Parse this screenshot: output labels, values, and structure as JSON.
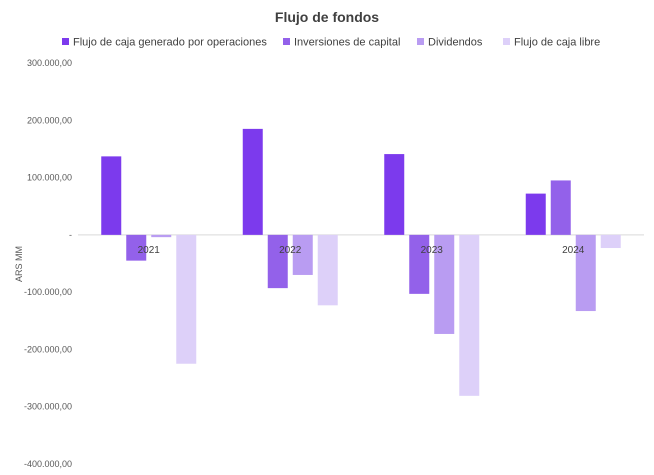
{
  "chart_data": {
    "type": "bar",
    "title": "Flujo de fondos",
    "ylabel": "ARS MM",
    "xlabel": "",
    "categories": [
      "2021",
      "2022",
      "2023",
      "2024"
    ],
    "ylim": [
      -400000,
      300000
    ],
    "yticks": [
      300000,
      200000,
      100000,
      0,
      -100000,
      -200000,
      -300000,
      -400000
    ],
    "ytick_labels": [
      "300.000,00",
      "200.000,00",
      "100.000,00",
      "-",
      "-100.000,00",
      "-200.000,00",
      "-300.000,00",
      "-400.000,00"
    ],
    "grid": false,
    "legend_position": "top",
    "series": [
      {
        "name": "Flujo de caja generado por operaciones",
        "color": "#7c3aed",
        "values": [
          137000,
          185000,
          141000,
          72000
        ]
      },
      {
        "name": "Inversiones de capital",
        "color": "#9361ea",
        "values": [
          -45000,
          -93000,
          -103000,
          95000
        ]
      },
      {
        "name": "Dividendos",
        "color": "#b99cf2",
        "values": [
          -4000,
          -70000,
          -173000,
          -133000
        ]
      },
      {
        "name": "Flujo de caja libre",
        "color": "#ddd0f9",
        "values": [
          -225000,
          -123000,
          -281000,
          -23000
        ]
      }
    ]
  }
}
